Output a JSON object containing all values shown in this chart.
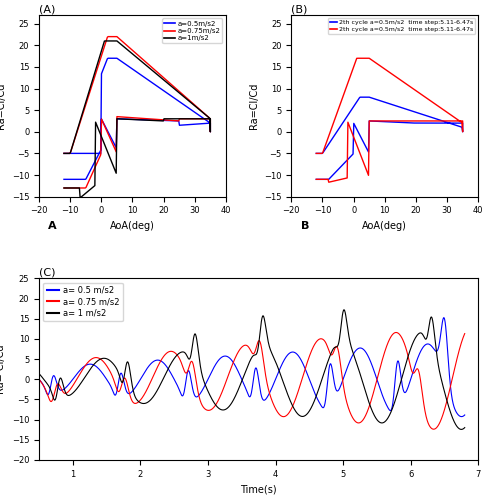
{
  "panel_A": {
    "title": "(A)",
    "xlabel": "AoA(deg)",
    "ylabel": "Ra=Cl/Cd",
    "xlim": [
      -20,
      40
    ],
    "ylim": [
      -15,
      27
    ],
    "xticks": [
      -20,
      -10,
      0,
      10,
      20,
      30,
      40
    ],
    "yticks": [
      -15,
      -10,
      -5,
      0,
      5,
      10,
      15,
      20,
      25
    ],
    "panel_label": "A",
    "legend": [
      "a=0.5m/s2",
      "a=0.75m/s2",
      "a=1m/s2"
    ],
    "colors": [
      "#0000FF",
      "#FF0000",
      "#000000"
    ]
  },
  "panel_B": {
    "title": "(B)",
    "xlabel": "AoA(deg)",
    "ylabel": "Ra=Cl/Cd",
    "xlim": [
      -20,
      40
    ],
    "ylim": [
      -15,
      27
    ],
    "xticks": [
      -20,
      -10,
      0,
      10,
      20,
      30,
      40
    ],
    "yticks": [
      -15,
      -10,
      -5,
      0,
      5,
      10,
      15,
      20,
      25
    ],
    "panel_label": "B",
    "legend": [
      "2th cycle a=0.5m/s2  time step:5.11-6.47s",
      "2th cycle a=0.5m/s2  time step:5.11-6.47s"
    ],
    "colors": [
      "#0000FF",
      "#FF0000"
    ]
  },
  "panel_C": {
    "title": "(C)",
    "xlabel": "Time(s)",
    "ylabel": "Ra= Cl/Cd",
    "xlim": [
      0.5,
      7
    ],
    "ylim": [
      -20,
      25
    ],
    "xticks": [
      1,
      2,
      3,
      4,
      5,
      6,
      7
    ],
    "yticks": [
      -20,
      -15,
      -10,
      -5,
      0,
      5,
      10,
      15,
      20,
      25
    ],
    "legend": [
      "a= 0.5 m/s2",
      "a= 0.75 m/s2",
      "a= 1 m/s2"
    ],
    "colors": [
      "#0000FF",
      "#FF0000",
      "#000000"
    ]
  },
  "figure_bg": "#FFFFFF",
  "axes_bg": "#FFFFFF"
}
